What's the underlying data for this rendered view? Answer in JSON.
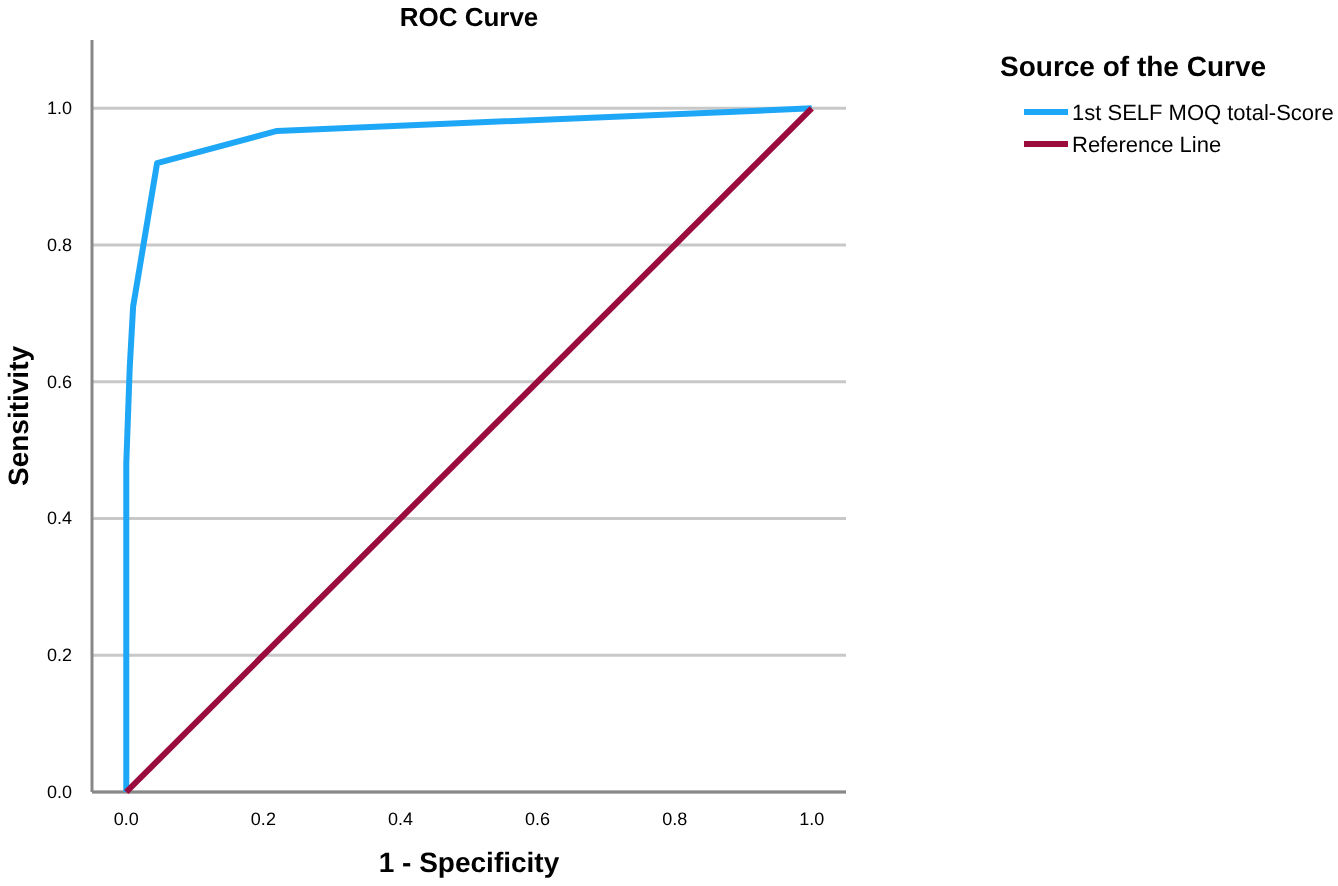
{
  "chart_data": {
    "type": "line",
    "title": "ROC Curve",
    "xlabel": "1 - Specificity",
    "ylabel": "Sensitivity",
    "legend_title": "Source of the Curve",
    "xlim": [
      -0.05,
      1.05
    ],
    "ylim": [
      0,
      1.1
    ],
    "xticks": [
      {
        "value": 0,
        "label": "0.0"
      },
      {
        "value": 0.2,
        "label": "0.2"
      },
      {
        "value": 0.4,
        "label": "0.4"
      },
      {
        "value": 0.6,
        "label": "0.6"
      },
      {
        "value": 0.8,
        "label": "0.8"
      },
      {
        "value": 1,
        "label": "1.0"
      }
    ],
    "yticks": [
      {
        "value": 0,
        "label": "0.0"
      },
      {
        "value": 0.2,
        "label": "0.2"
      },
      {
        "value": 0.4,
        "label": "0.4"
      },
      {
        "value": 0.6,
        "label": "0.6"
      },
      {
        "value": 0.8,
        "label": "0.8"
      },
      {
        "value": 1,
        "label": "1.0"
      }
    ],
    "grid": "y",
    "legend": "top right",
    "marker": "none",
    "line_style": "solid",
    "series": [
      {
        "name": "1st SELF MOQ total-Score",
        "color": "#1ea7f7",
        "x": [
          0,
          0,
          0.005,
          0.01,
          0.045,
          0.22,
          1
        ],
        "values": [
          0,
          0.48,
          0.62,
          0.71,
          0.92,
          0.967,
          1
        ]
      },
      {
        "name": "Reference Line",
        "color": "#990c3d",
        "x": [
          0,
          1
        ],
        "values": [
          0,
          1
        ]
      }
    ]
  }
}
